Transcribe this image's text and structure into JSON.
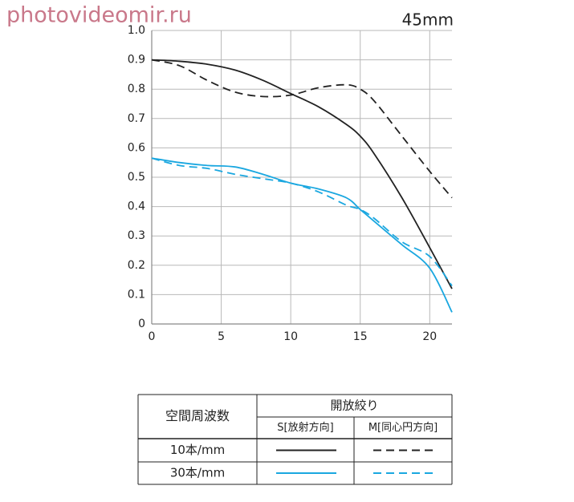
{
  "chart_data": {
    "type": "line",
    "watermark": "photovideomir.ru",
    "title": "45mm",
    "x": [
      0,
      2,
      4,
      6,
      8,
      10,
      12,
      14,
      15,
      16,
      18,
      20,
      21.6
    ],
    "series": [
      {
        "color": "#222222",
        "dash": false,
        "values": [
          0.9,
          0.895,
          0.885,
          0.865,
          0.83,
          0.785,
          0.74,
          0.68,
          0.64,
          0.58,
          0.43,
          0.26,
          0.12
        ]
      },
      {
        "color": "#222222",
        "dash": true,
        "values": [
          0.9,
          0.88,
          0.83,
          0.79,
          0.775,
          0.78,
          0.805,
          0.815,
          0.8,
          0.76,
          0.64,
          0.52,
          0.43
        ]
      },
      {
        "color": "#1aa7e0",
        "dash": false,
        "values": [
          0.565,
          0.55,
          0.54,
          0.535,
          0.51,
          0.48,
          0.46,
          0.43,
          0.39,
          0.35,
          0.27,
          0.19,
          0.04
        ]
      },
      {
        "color": "#1aa7e0",
        "dash": true,
        "values": [
          0.565,
          0.54,
          0.53,
          0.51,
          0.495,
          0.48,
          0.45,
          0.405,
          0.39,
          0.36,
          0.28,
          0.23,
          0.13
        ]
      }
    ],
    "xlim": [
      0,
      21.6
    ],
    "xticks": [
      0,
      5,
      10,
      15,
      20
    ],
    "ylim": [
      0,
      1
    ],
    "yticks": [
      0,
      0.1,
      0.2,
      0.3,
      0.4,
      0.5,
      0.6,
      0.7,
      0.8,
      0.9,
      {
        "value": 1,
        "label": "1.0"
      }
    ],
    "grid": true,
    "legend_table": {
      "row_header": "空間周波数",
      "column_header": "開放絞り",
      "columns": [
        "S[放射方向]",
        "M[同心円方向]"
      ],
      "rows": [
        "10本/mm",
        "30本/mm"
      ]
    }
  }
}
